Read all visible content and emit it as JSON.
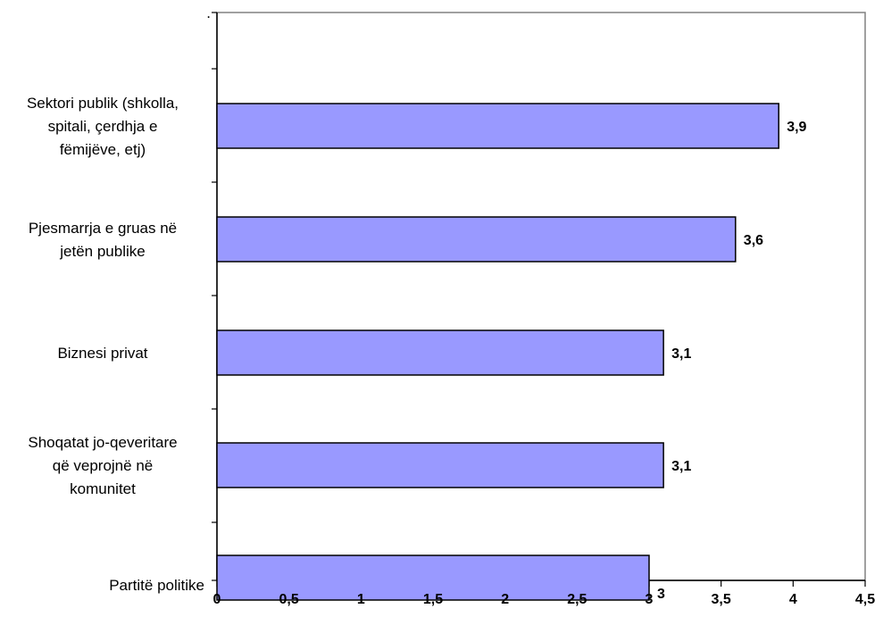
{
  "chart_data": {
    "type": "bar",
    "orientation": "horizontal",
    "categories": [
      ".",
      [
        "Sektori publik (shkolla,",
        "spitali, çerdhja e",
        "fëmijëve, etj)"
      ],
      [
        "Pjesmarrja e gruas në",
        "jetën publike"
      ],
      [
        "Biznesi privat"
      ],
      [
        "Shoqatat jo-qeveritare",
        "që veprojnë në",
        "komunitet"
      ],
      [
        "Partitë politike"
      ]
    ],
    "values": [
      null,
      3.9,
      3.6,
      3.1,
      3.1,
      3
    ],
    "data_labels": [
      "",
      "3,9",
      "3,6",
      "3,1",
      "3,1",
      "3"
    ],
    "x_ticks": [
      "0",
      "0,5",
      "1",
      "1,5",
      "2",
      "2,5",
      "3",
      "3,5",
      "4",
      "4,5"
    ],
    "xlim": [
      0,
      4.5
    ],
    "grid": false,
    "legend": "none",
    "bar_color": "#9999ff",
    "bar_border": "#000000",
    "plot_border": "#808080"
  }
}
